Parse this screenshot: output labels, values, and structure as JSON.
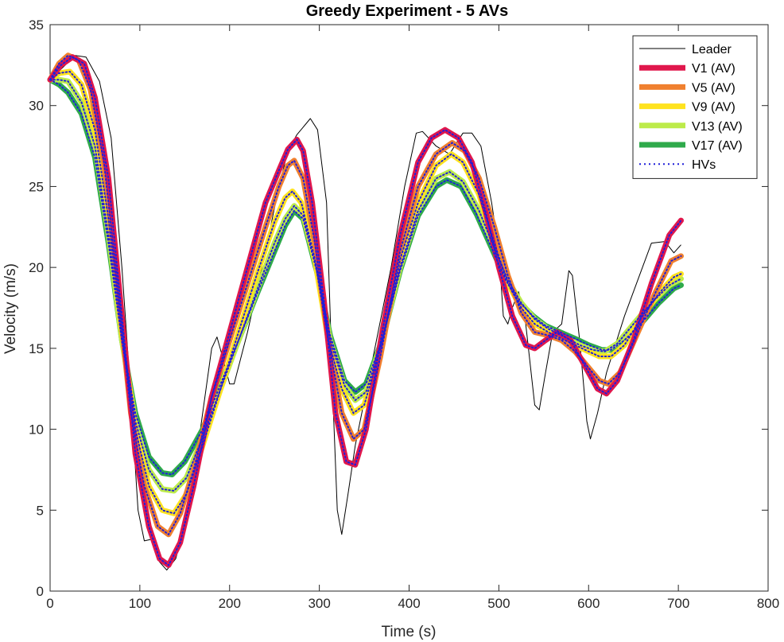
{
  "chart_data": {
    "type": "line",
    "title": "Greedy Experiment - 5 AVs",
    "xlabel": "Time (s)",
    "ylabel": "Velocity (m/s)",
    "xlim": [
      0,
      800
    ],
    "ylim": [
      0,
      35
    ],
    "xticks": [
      0,
      100,
      200,
      300,
      400,
      500,
      600,
      700,
      800
    ],
    "yticks": [
      0,
      5,
      10,
      15,
      20,
      25,
      30,
      35
    ],
    "grid": false,
    "legend_position": "top-right",
    "series": [
      {
        "name": "Leader",
        "color": "#000000",
        "style": "thin",
        "points": [
          [
            0,
            31.6
          ],
          [
            15,
            32.4
          ],
          [
            28,
            33.1
          ],
          [
            40,
            33.0
          ],
          [
            55,
            31.5
          ],
          [
            68,
            28.0
          ],
          [
            80,
            20.0
          ],
          [
            90,
            12.0
          ],
          [
            98,
            5.0
          ],
          [
            105,
            3.1
          ],
          [
            113,
            3.2
          ],
          [
            122,
            1.8
          ],
          [
            130,
            1.3
          ],
          [
            140,
            2.0
          ],
          [
            150,
            4.0
          ],
          [
            160,
            7.0
          ],
          [
            170,
            11.0
          ],
          [
            180,
            15.0
          ],
          [
            186,
            15.7
          ],
          [
            192,
            14.5
          ],
          [
            200,
            12.8
          ],
          [
            205,
            12.8
          ],
          [
            220,
            16.0
          ],
          [
            240,
            21.0
          ],
          [
            255,
            25.0
          ],
          [
            265,
            27.2
          ],
          [
            275,
            28.2
          ],
          [
            290,
            29.2
          ],
          [
            298,
            28.5
          ],
          [
            308,
            24.0
          ],
          [
            315,
            12.0
          ],
          [
            320,
            5.0
          ],
          [
            325,
            3.5
          ],
          [
            332,
            6.0
          ],
          [
            340,
            9.0
          ],
          [
            360,
            14.5
          ],
          [
            380,
            20.0
          ],
          [
            395,
            25.0
          ],
          [
            408,
            28.3
          ],
          [
            415,
            28.4
          ],
          [
            430,
            27.5
          ],
          [
            445,
            27.0
          ],
          [
            460,
            28.3
          ],
          [
            470,
            28.3
          ],
          [
            480,
            27.5
          ],
          [
            492,
            24.0
          ],
          [
            500,
            21.0
          ],
          [
            505,
            17.0
          ],
          [
            510,
            16.5
          ],
          [
            515,
            17.5
          ],
          [
            522,
            18.5
          ],
          [
            530,
            16.5
          ],
          [
            540,
            11.5
          ],
          [
            545,
            11.2
          ],
          [
            552,
            13.5
          ],
          [
            560,
            16.0
          ],
          [
            570,
            16.5
          ],
          [
            578,
            19.8
          ],
          [
            582,
            19.5
          ],
          [
            590,
            15.5
          ],
          [
            598,
            10.5
          ],
          [
            602,
            9.4
          ],
          [
            610,
            11.0
          ],
          [
            620,
            13.5
          ],
          [
            640,
            17.0
          ],
          [
            660,
            20.0
          ],
          [
            670,
            21.5
          ],
          [
            685,
            21.6
          ],
          [
            695,
            20.9
          ],
          [
            703,
            21.4
          ]
        ]
      },
      {
        "name": "V1 (AV)",
        "color": "#e0174c",
        "style": "thick",
        "points": [
          [
            0,
            31.6
          ],
          [
            12,
            32.5
          ],
          [
            25,
            33.0
          ],
          [
            38,
            32.6
          ],
          [
            50,
            30.5
          ],
          [
            65,
            25.5
          ],
          [
            80,
            17.0
          ],
          [
            95,
            8.5
          ],
          [
            110,
            4.0
          ],
          [
            122,
            2.0
          ],
          [
            132,
            1.6
          ],
          [
            145,
            3.0
          ],
          [
            160,
            6.5
          ],
          [
            180,
            12.0
          ],
          [
            200,
            16.0
          ],
          [
            220,
            20.0
          ],
          [
            240,
            24.0
          ],
          [
            255,
            26.0
          ],
          [
            265,
            27.3
          ],
          [
            275,
            27.9
          ],
          [
            282,
            27.2
          ],
          [
            292,
            24.0
          ],
          [
            305,
            18.0
          ],
          [
            318,
            11.0
          ],
          [
            330,
            8.0
          ],
          [
            340,
            7.8
          ],
          [
            352,
            10.0
          ],
          [
            370,
            16.0
          ],
          [
            390,
            22.0
          ],
          [
            410,
            26.5
          ],
          [
            425,
            28.0
          ],
          [
            440,
            28.5
          ],
          [
            455,
            28.0
          ],
          [
            470,
            26.5
          ],
          [
            485,
            23.5
          ],
          [
            500,
            20.0
          ],
          [
            515,
            17.0
          ],
          [
            530,
            15.2
          ],
          [
            540,
            15.0
          ],
          [
            552,
            15.5
          ],
          [
            565,
            16.0
          ],
          [
            580,
            15.5
          ],
          [
            595,
            14.0
          ],
          [
            610,
            12.5
          ],
          [
            620,
            12.2
          ],
          [
            632,
            13.0
          ],
          [
            650,
            15.5
          ],
          [
            670,
            19.0
          ],
          [
            690,
            22.0
          ],
          [
            703,
            22.9
          ]
        ]
      },
      {
        "name": "V5 (AV)",
        "color": "#f0802f",
        "style": "thick",
        "points": [
          [
            0,
            31.6
          ],
          [
            10,
            32.6
          ],
          [
            20,
            33.1
          ],
          [
            32,
            32.8
          ],
          [
            45,
            31.0
          ],
          [
            60,
            26.5
          ],
          [
            75,
            19.0
          ],
          [
            90,
            11.0
          ],
          [
            105,
            6.5
          ],
          [
            120,
            4.0
          ],
          [
            132,
            3.5
          ],
          [
            145,
            4.8
          ],
          [
            160,
            7.5
          ],
          [
            180,
            12.0
          ],
          [
            200,
            15.5
          ],
          [
            220,
            19.0
          ],
          [
            240,
            22.5
          ],
          [
            255,
            25.0
          ],
          [
            265,
            26.3
          ],
          [
            272,
            26.6
          ],
          [
            282,
            25.5
          ],
          [
            295,
            21.5
          ],
          [
            310,
            15.5
          ],
          [
            325,
            11.0
          ],
          [
            338,
            9.4
          ],
          [
            350,
            10.0
          ],
          [
            368,
            14.5
          ],
          [
            390,
            21.0
          ],
          [
            410,
            25.0
          ],
          [
            430,
            27.0
          ],
          [
            448,
            27.7
          ],
          [
            462,
            27.2
          ],
          [
            478,
            25.5
          ],
          [
            495,
            22.5
          ],
          [
            510,
            19.5
          ],
          [
            525,
            17.2
          ],
          [
            540,
            16.0
          ],
          [
            555,
            15.8
          ],
          [
            570,
            15.5
          ],
          [
            585,
            14.8
          ],
          [
            600,
            13.8
          ],
          [
            612,
            13.0
          ],
          [
            622,
            12.8
          ],
          [
            635,
            13.5
          ],
          [
            655,
            16.0
          ],
          [
            675,
            18.5
          ],
          [
            692,
            20.4
          ],
          [
            703,
            20.7
          ]
        ]
      },
      {
        "name": "V9 (AV)",
        "color": "#ffe31f",
        "style": "thick",
        "points": [
          [
            0,
            31.6
          ],
          [
            10,
            32.0
          ],
          [
            22,
            32.1
          ],
          [
            35,
            31.3
          ],
          [
            50,
            28.5
          ],
          [
            65,
            23.0
          ],
          [
            80,
            16.0
          ],
          [
            95,
            10.0
          ],
          [
            110,
            6.5
          ],
          [
            125,
            5.0
          ],
          [
            138,
            4.8
          ],
          [
            152,
            6.0
          ],
          [
            170,
            9.0
          ],
          [
            190,
            12.5
          ],
          [
            210,
            16.0
          ],
          [
            230,
            19.5
          ],
          [
            250,
            22.8
          ],
          [
            262,
            24.3
          ],
          [
            270,
            24.7
          ],
          [
            280,
            24.0
          ],
          [
            295,
            20.5
          ],
          [
            310,
            15.5
          ],
          [
            325,
            12.5
          ],
          [
            338,
            11.0
          ],
          [
            350,
            11.5
          ],
          [
            368,
            15.0
          ],
          [
            390,
            20.5
          ],
          [
            410,
            24.0
          ],
          [
            430,
            26.3
          ],
          [
            447,
            27.0
          ],
          [
            460,
            26.5
          ],
          [
            478,
            24.5
          ],
          [
            495,
            21.5
          ],
          [
            510,
            19.0
          ],
          [
            525,
            17.5
          ],
          [
            540,
            16.5
          ],
          [
            555,
            16.0
          ],
          [
            570,
            15.6
          ],
          [
            585,
            15.2
          ],
          [
            600,
            14.8
          ],
          [
            612,
            14.5
          ],
          [
            625,
            14.5
          ],
          [
            640,
            15.2
          ],
          [
            660,
            17.0
          ],
          [
            680,
            18.5
          ],
          [
            695,
            19.4
          ],
          [
            703,
            19.6
          ]
        ]
      },
      {
        "name": "V13 (AV)",
        "color": "#bdeb4a",
        "style": "thick",
        "points": [
          [
            0,
            31.6
          ],
          [
            10,
            31.6
          ],
          [
            20,
            31.5
          ],
          [
            35,
            30.2
          ],
          [
            50,
            27.5
          ],
          [
            65,
            22.0
          ],
          [
            80,
            15.5
          ],
          [
            95,
            10.5
          ],
          [
            110,
            7.5
          ],
          [
            125,
            6.3
          ],
          [
            138,
            6.2
          ],
          [
            152,
            7.0
          ],
          [
            170,
            9.5
          ],
          [
            190,
            12.5
          ],
          [
            210,
            15.5
          ],
          [
            230,
            18.5
          ],
          [
            250,
            21.5
          ],
          [
            262,
            23.0
          ],
          [
            272,
            23.8
          ],
          [
            282,
            23.2
          ],
          [
            297,
            20.0
          ],
          [
            312,
            15.5
          ],
          [
            328,
            12.7
          ],
          [
            340,
            11.8
          ],
          [
            352,
            12.3
          ],
          [
            370,
            15.5
          ],
          [
            390,
            20.0
          ],
          [
            410,
            23.5
          ],
          [
            430,
            25.5
          ],
          [
            445,
            25.9
          ],
          [
            460,
            25.3
          ],
          [
            478,
            23.5
          ],
          [
            495,
            21.2
          ],
          [
            510,
            19.2
          ],
          [
            525,
            17.8
          ],
          [
            540,
            16.8
          ],
          [
            555,
            16.2
          ],
          [
            570,
            15.8
          ],
          [
            590,
            15.2
          ],
          [
            605,
            14.9
          ],
          [
            618,
            14.8
          ],
          [
            632,
            15.3
          ],
          [
            650,
            16.5
          ],
          [
            670,
            17.8
          ],
          [
            690,
            18.9
          ],
          [
            703,
            19.3
          ]
        ]
      },
      {
        "name": "V17 (AV)",
        "color": "#2faa4b",
        "style": "thick",
        "points": [
          [
            0,
            31.6
          ],
          [
            10,
            31.3
          ],
          [
            20,
            30.8
          ],
          [
            35,
            29.5
          ],
          [
            50,
            26.8
          ],
          [
            65,
            21.5
          ],
          [
            80,
            15.5
          ],
          [
            95,
            11.0
          ],
          [
            110,
            8.3
          ],
          [
            125,
            7.3
          ],
          [
            136,
            7.2
          ],
          [
            150,
            8.0
          ],
          [
            170,
            10.0
          ],
          [
            190,
            12.8
          ],
          [
            210,
            15.5
          ],
          [
            230,
            18.3
          ],
          [
            250,
            21.0
          ],
          [
            262,
            22.6
          ],
          [
            272,
            23.5
          ],
          [
            282,
            23.0
          ],
          [
            297,
            19.8
          ],
          [
            312,
            15.8
          ],
          [
            328,
            13.0
          ],
          [
            340,
            12.3
          ],
          [
            352,
            12.8
          ],
          [
            370,
            15.5
          ],
          [
            390,
            19.8
          ],
          [
            410,
            23.2
          ],
          [
            430,
            25.0
          ],
          [
            442,
            25.4
          ],
          [
            458,
            25.0
          ],
          [
            475,
            23.3
          ],
          [
            492,
            21.2
          ],
          [
            508,
            19.2
          ],
          [
            522,
            17.9
          ],
          [
            538,
            17.0
          ],
          [
            552,
            16.4
          ],
          [
            568,
            16.0
          ],
          [
            585,
            15.6
          ],
          [
            600,
            15.2
          ],
          [
            615,
            14.9
          ],
          [
            625,
            14.9
          ],
          [
            640,
            15.5
          ],
          [
            658,
            16.5
          ],
          [
            678,
            17.8
          ],
          [
            695,
            18.7
          ],
          [
            703,
            18.9
          ]
        ]
      }
    ],
    "hv_series": {
      "name": "HVs",
      "color": "#1f1fd9",
      "style": "dotted"
    }
  }
}
